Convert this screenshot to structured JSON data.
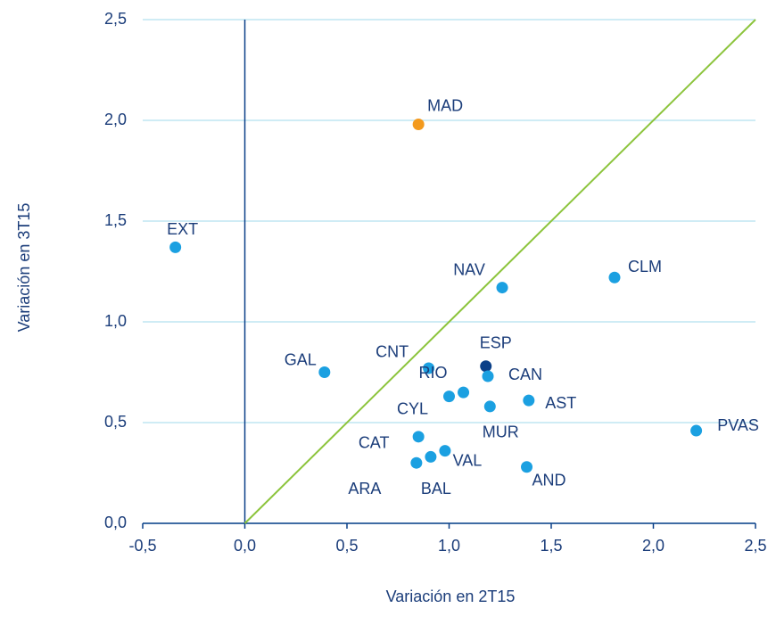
{
  "chart_data": {
    "type": "scatter",
    "xlabel": "Variación en 2T15",
    "ylabel": "Variación en 3T15",
    "labels": [
      "EXT",
      "MAD",
      "NAV",
      "CLM",
      "GAL",
      "CNT",
      "ESP",
      "CAN",
      "CYL",
      "RIO",
      "AST",
      "MUR",
      "CAT",
      "VAL",
      "BAL",
      "ARA",
      "AND",
      "PVAS"
    ],
    "x": [
      -0.34,
      0.85,
      1.26,
      1.81,
      0.39,
      0.9,
      1.18,
      1.19,
      1.0,
      1.07,
      1.39,
      1.2,
      0.85,
      0.98,
      0.91,
      0.84,
      1.38,
      2.21
    ],
    "values": [
      1.37,
      1.98,
      1.17,
      1.22,
      0.75,
      0.77,
      0.78,
      0.73,
      0.63,
      0.65,
      0.61,
      0.58,
      0.43,
      0.36,
      0.33,
      0.3,
      0.28,
      0.46
    ],
    "colors": [
      "#1ba0e1",
      "#f39a1e",
      "#1ba0e1",
      "#1ba0e1",
      "#1ba0e1",
      "#1ba0e1",
      "#0a3f88",
      "#1ba0e1",
      "#1ba0e1",
      "#1ba0e1",
      "#1ba0e1",
      "#1ba0e1",
      "#1ba0e1",
      "#1ba0e1",
      "#1ba0e1",
      "#1ba0e1",
      "#1ba0e1",
      "#1ba0e1"
    ],
    "reference_line": {
      "x": [
        0,
        2.5
      ],
      "y": [
        0,
        2.5
      ],
      "color": "#8cc43c"
    },
    "xlim": [
      -0.5,
      2.5
    ],
    "xticks": [
      {
        "value": -0.5,
        "label": "-0,5"
      },
      {
        "value": 0,
        "label": "0,0"
      },
      {
        "value": 0.5,
        "label": "0,5"
      },
      {
        "value": 1,
        "label": "1,0"
      },
      {
        "value": 1.5,
        "label": "1,5"
      },
      {
        "value": 2,
        "label": "2,0"
      },
      {
        "value": 2.5,
        "label": "2,5"
      }
    ],
    "ylim": [
      0,
      2.5
    ],
    "yticks": [
      {
        "value": 0,
        "label": "0,0"
      },
      {
        "value": 0.5,
        "label": "0,5"
      },
      {
        "value": 1,
        "label": "1,0"
      },
      {
        "value": 1.5,
        "label": "1,5"
      },
      {
        "value": 2,
        "label": "2,0"
      },
      {
        "value": 2.5,
        "label": "2,5"
      }
    ],
    "grid": true
  }
}
